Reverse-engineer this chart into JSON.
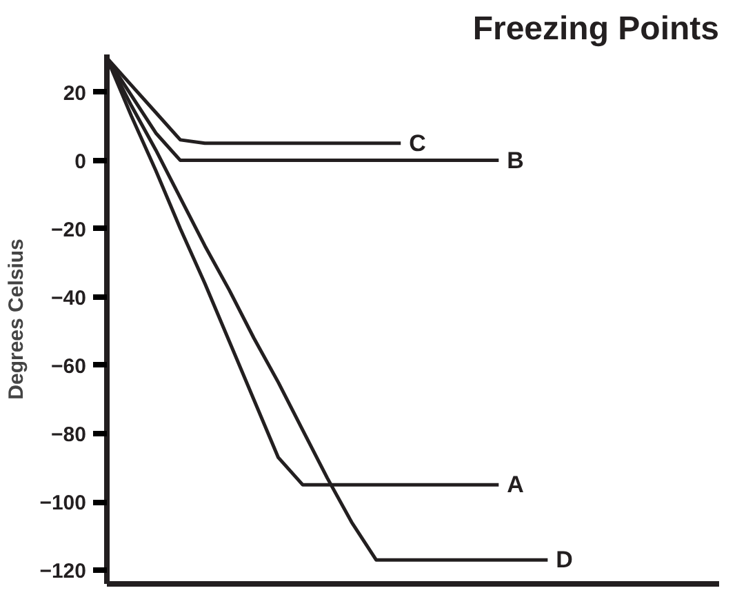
{
  "chart_data": {
    "type": "line",
    "title": "Freezing Points",
    "ylabel": "Degrees Celsius",
    "categories": [
      null,
      null,
      null,
      null,
      null,
      null,
      null,
      null,
      null,
      null,
      null,
      null,
      null,
      null,
      null,
      null,
      null,
      null,
      null,
      null,
      null,
      null,
      null,
      null,
      null,
      null
    ],
    "ylim": [
      -124,
      31
    ],
    "yticks": [
      20,
      0,
      -20,
      -40,
      -60,
      -80,
      -100,
      -120
    ],
    "tick_labels": "y",
    "grid": false,
    "marker": "none",
    "line_style": "solid",
    "series": [
      {
        "name": "C",
        "color": "#231f20",
        "values": [
          30,
          22,
          14,
          6,
          5,
          5,
          5,
          5,
          5,
          5,
          5,
          5,
          5,
          null,
          null,
          null,
          null,
          null,
          null,
          null,
          null,
          null,
          null,
          null,
          null,
          null
        ]
      },
      {
        "name": "B",
        "color": "#231f20",
        "values": [
          30,
          19,
          8,
          0,
          0,
          0,
          0,
          0,
          0,
          0,
          0,
          0,
          0,
          0,
          0,
          0,
          0,
          null,
          null,
          null,
          null,
          null,
          null,
          null,
          null,
          null
        ]
      },
      {
        "name": "A",
        "color": "#231f20",
        "values": [
          30,
          13,
          -3,
          -20,
          -36,
          -53,
          -70,
          -87,
          -95,
          -95,
          -95,
          -95,
          -95,
          -95,
          -95,
          -95,
          -95,
          null,
          null,
          null,
          null,
          null,
          null,
          null,
          null,
          null
        ]
      },
      {
        "name": "D",
        "color": "#231f20",
        "values": [
          30,
          16,
          3,
          -11,
          -25,
          -38,
          -52,
          -65,
          -79,
          -93,
          -106,
          -117,
          -117,
          -117,
          -117,
          -117,
          -117,
          -117,
          -117,
          null,
          null,
          null,
          null,
          null,
          null,
          null
        ]
      }
    ]
  }
}
